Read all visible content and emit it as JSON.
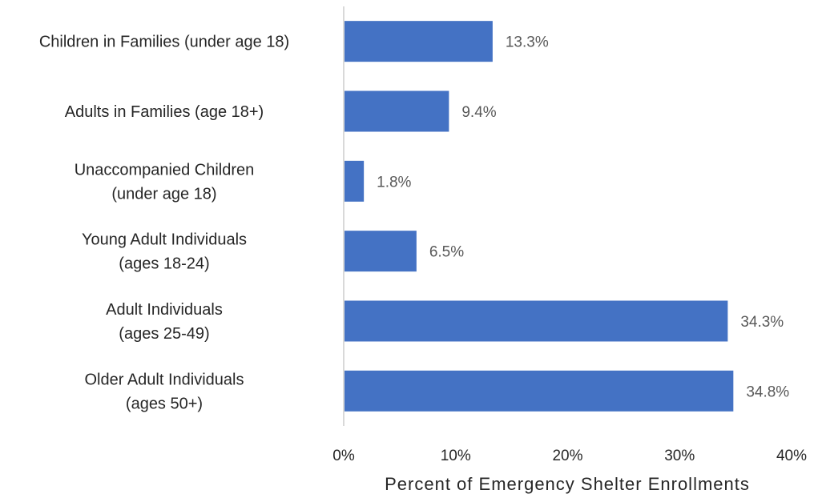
{
  "chart_data": {
    "type": "bar",
    "orientation": "horizontal",
    "categories": [
      [
        "Children in Families (under age 18)"
      ],
      [
        "Adults in Families (age 18+)"
      ],
      [
        "Unaccompanied Children",
        "(under age 18)"
      ],
      [
        "Young Adult Individuals",
        "(ages 18-24)"
      ],
      [
        "Adult Individuals",
        "(ages 25-49)"
      ],
      [
        "Older Adult Individuals",
        "(ages 50+)"
      ]
    ],
    "values": [
      13.3,
      9.4,
      1.8,
      6.5,
      34.3,
      34.8
    ],
    "data_labels": [
      "13.3%",
      "9.4%",
      "1.8%",
      "6.5%",
      "34.3%",
      "34.8%"
    ],
    "x_ticks": [
      "0%",
      "10%",
      "20%",
      "30%",
      "40%"
    ],
    "xlim": [
      0,
      40
    ],
    "xlabel": "Percent of Emergency Shelter Enrollments",
    "ylabel": "",
    "title": "",
    "grid": false,
    "bar_color": "#4472C4",
    "axis_color": "#D9D9D9"
  }
}
